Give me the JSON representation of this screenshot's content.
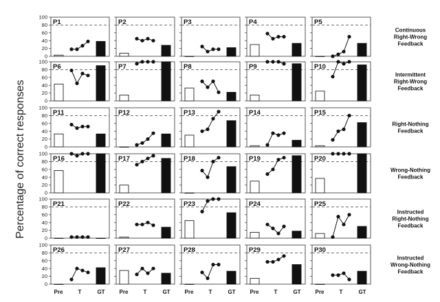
{
  "chart_data": {
    "type": "multi-panel",
    "ylabel": "Percentage of correct responses",
    "x_categories": [
      "Pre",
      "T",
      "GT"
    ],
    "ylim": [
      0,
      100
    ],
    "yticks": [
      0,
      20,
      40,
      60,
      80,
      100
    ],
    "criterion_line": 80,
    "bar_colors": {
      "Pre": "#ffffff",
      "GT": "#111111"
    },
    "conditions": [
      "Continuous Right-Wrong Feedback",
      "Intermittent Right-Wrong Feedback",
      "Right-Nothing Feedback",
      "Wrong-Nothing Feedback",
      "Instructed Right-Nothing Feedback",
      "Instructed Wrong-Nothing Feedback"
    ],
    "panels": [
      {
        "label": "P1",
        "pre": 3,
        "training": [
          18,
          18,
          27,
          38
        ],
        "gt": 38
      },
      {
        "label": "P2",
        "pre": 8,
        "training": [
          45,
          40,
          45,
          40
        ],
        "gt": 28
      },
      {
        "label": "P3",
        "pre": 0,
        "training": [
          25,
          12,
          18,
          18
        ],
        "gt": 22
      },
      {
        "label": "P4",
        "pre": 30,
        "training": [
          58,
          45,
          50,
          50
        ],
        "gt": 33
      },
      {
        "label": "P5",
        "pre": 0,
        "training": [
          0,
          5,
          12,
          50
        ],
        "gt": 33
      },
      {
        "label": "P6",
        "pre": 43,
        "training": [
          78,
          45,
          70,
          65
        ],
        "gt": 90
      },
      {
        "label": "P7",
        "pre": 15,
        "training": [
          95,
          100,
          100,
          100
        ],
        "gt": 100
      },
      {
        "label": "P8",
        "pre": 33,
        "training": [
          50,
          35,
          50,
          22
        ],
        "gt": 22
      },
      {
        "label": "P9",
        "pre": 15,
        "training": [
          100,
          100,
          100,
          95
        ],
        "gt": 95
      },
      {
        "label": "P10",
        "pre": 25,
        "training": [
          62,
          100,
          95,
          100
        ],
        "gt": 92
      },
      {
        "label": "P11",
        "pre": 33,
        "training": [
          57,
          48,
          52,
          52
        ],
        "gt": 33
      },
      {
        "label": "P12",
        "pre": 0,
        "training": [
          5,
          10,
          20,
          35
        ],
        "gt": 33
      },
      {
        "label": "P13",
        "pre": 30,
        "training": [
          40,
          45,
          72,
          90
        ],
        "gt": 67
      },
      {
        "label": "P14",
        "pre": 3,
        "training": [
          5,
          35,
          30,
          35
        ],
        "gt": 17
      },
      {
        "label": "P15",
        "pre": 3,
        "training": [
          18,
          40,
          45,
          80
        ],
        "gt": 62
      },
      {
        "label": "P16",
        "pre": 57,
        "training": [
          100,
          95,
          100,
          100
        ],
        "gt": 100
      },
      {
        "label": "P17",
        "pre": 20,
        "training": [
          72,
          80,
          88,
          95
        ],
        "gt": 88
      },
      {
        "label": "P18",
        "pre": 0,
        "training": [
          57,
          40,
          80,
          90
        ],
        "gt": 67
      },
      {
        "label": "P19",
        "pre": 30,
        "training": [
          48,
          60,
          85,
          90
        ],
        "gt": 95
      },
      {
        "label": "P20",
        "pre": 37,
        "training": [
          100,
          100,
          100,
          100
        ],
        "gt": 100
      },
      {
        "label": "P21",
        "pre": 0,
        "training": [
          3,
          3,
          3,
          3
        ],
        "gt": 0
      },
      {
        "label": "P22",
        "pre": 3,
        "training": [
          35,
          35,
          40,
          33
        ],
        "gt": 28
      },
      {
        "label": "P23",
        "pre": 45,
        "training": [
          68,
          95,
          100,
          100
        ],
        "gt": 65
      },
      {
        "label": "P24",
        "pre": 15,
        "training": [
          35,
          25,
          12,
          30
        ],
        "gt": 18
      },
      {
        "label": "P25",
        "pre": 12,
        "training": [
          3,
          55,
          35,
          60
        ],
        "gt": 30
      },
      {
        "label": "P26",
        "pre": 0,
        "training": [
          12,
          40,
          35,
          30
        ],
        "gt": 42
      },
      {
        "label": "P27",
        "pre": 35,
        "training": [
          25,
          40,
          28,
          40
        ],
        "gt": 28
      },
      {
        "label": "P28",
        "pre": 0,
        "training": [
          30,
          15,
          50,
          50
        ],
        "gt": 33
      },
      {
        "label": "P29",
        "pre": 15,
        "training": [
          57,
          57,
          63,
          72
        ],
        "gt": 50
      },
      {
        "label": "P30",
        "pre": 0,
        "training": [
          23,
          23,
          28,
          12
        ],
        "gt": 33
      }
    ]
  }
}
